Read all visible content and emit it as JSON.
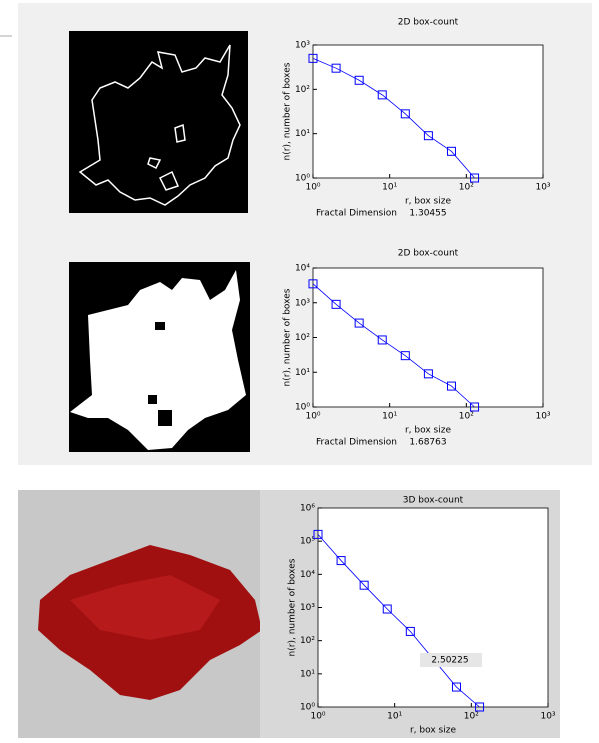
{
  "chart_data": [
    {
      "type": "line",
      "title": "2D box-count",
      "xlabel": "r, box size",
      "ylabel": "n(r), number of boxes",
      "annotation_label": "Fractal Dimension",
      "annotation_value": "1.30455",
      "x": [
        1,
        2,
        4,
        8,
        16,
        32,
        64,
        128
      ],
      "series": [
        {
          "color": "#0000ff",
          "values": [
            500,
            300,
            160,
            75,
            28,
            9,
            4,
            1
          ]
        }
      ],
      "log_scale": true,
      "xlim": [
        1,
        1000
      ],
      "ylim": [
        1,
        1000
      ],
      "xticks": [
        {
          "value": 1,
          "label": "10⁰"
        },
        {
          "value": 10,
          "label": "10¹"
        },
        {
          "value": 100,
          "label": "10²"
        },
        {
          "value": 1000,
          "label": "10³"
        }
      ],
      "yticks": [
        {
          "value": 1,
          "label": "10⁰"
        },
        {
          "value": 10,
          "label": "10¹"
        },
        {
          "value": 100,
          "label": "10²"
        },
        {
          "value": 1000,
          "label": "10³"
        }
      ]
    },
    {
      "type": "line",
      "title": "2D box-count",
      "xlabel": "r, box size",
      "ylabel": "n(r), number of boxes",
      "annotation_label": "Fractal Dimension",
      "annotation_value": "1.68763",
      "x": [
        1,
        2,
        4,
        8,
        16,
        32,
        64,
        128
      ],
      "series": [
        {
          "color": "#0000ff",
          "values": [
            3500,
            900,
            260,
            85,
            30,
            9,
            4,
            1
          ]
        }
      ],
      "log_scale": true,
      "xlim": [
        1,
        1000
      ],
      "ylim": [
        1,
        10000
      ],
      "xticks": [
        {
          "value": 1,
          "label": "10⁰"
        },
        {
          "value": 10,
          "label": "10¹"
        },
        {
          "value": 100,
          "label": "10²"
        },
        {
          "value": 1000,
          "label": "10³"
        }
      ],
      "yticks": [
        {
          "value": 1,
          "label": "10⁰"
        },
        {
          "value": 10,
          "label": "10¹"
        },
        {
          "value": 100,
          "label": "10²"
        },
        {
          "value": 1000,
          "label": "10³"
        },
        {
          "value": 10000,
          "label": "10⁴"
        }
      ]
    },
    {
      "type": "line",
      "title": "3D box-count",
      "xlabel": "r, box size",
      "ylabel": "n(r), number of boxes",
      "annotation_value": "2.50225",
      "x": [
        1,
        2,
        4,
        8,
        16,
        64,
        128
      ],
      "series": [
        {
          "color": "#0000ff",
          "values": [
            160000,
            26000,
            4700,
            900,
            190,
            4,
            1
          ]
        }
      ],
      "log_scale": true,
      "xlim": [
        1,
        1000
      ],
      "ylim": [
        1,
        1000000
      ],
      "xticks": [
        {
          "value": 1,
          "label": "10⁰"
        },
        {
          "value": 10,
          "label": "10¹"
        },
        {
          "value": 100,
          "label": "10²"
        },
        {
          "value": 1000,
          "label": "10³"
        }
      ],
      "yticks": [
        {
          "value": 1,
          "label": "10⁰"
        },
        {
          "value": 10,
          "label": "10¹"
        },
        {
          "value": 100,
          "label": "10²"
        },
        {
          "value": 1000,
          "label": "10³"
        },
        {
          "value": 10000,
          "label": "10⁴"
        },
        {
          "value": 100000,
          "label": "10⁵"
        },
        {
          "value": 1000000,
          "label": "10⁶"
        }
      ]
    }
  ]
}
